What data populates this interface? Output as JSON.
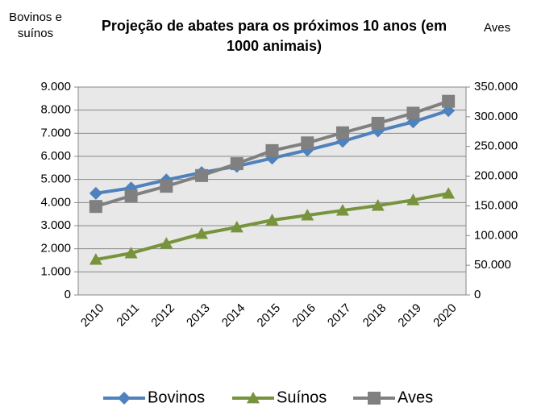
{
  "chart_data": {
    "type": "line",
    "title": "Projeção de abates para os próximos 10 anos (em 1000 animais)",
    "y_label": "Bovinos e suínos",
    "y2_label": "Aves",
    "categories": [
      "2010",
      "2011",
      "2012",
      "2013",
      "2014",
      "2015",
      "2016",
      "2017",
      "2018",
      "2019",
      "2020"
    ],
    "series": [
      {
        "name": "Bovinos",
        "color": "#4f81bd",
        "marker": "diamond",
        "values": [
          4400,
          4630,
          4980,
          5300,
          5570,
          5920,
          6270,
          6650,
          7100,
          7490,
          7980
        ]
      },
      {
        "name": "Suínos",
        "color": "#77933c",
        "marker": "triangle",
        "values": [
          1530,
          1810,
          2230,
          2650,
          2930,
          3240,
          3450,
          3660,
          3870,
          4110,
          4390
        ]
      },
      {
        "name": "Aves",
        "color": "#808080",
        "marker": "square",
        "axis": "y2",
        "values": [
          149000,
          167000,
          183000,
          201000,
          221000,
          243000,
          256000,
          273000,
          289000,
          306000,
          326000
        ]
      }
    ],
    "ylim": [
      0,
      9000
    ],
    "yticks": [
      0,
      {
        "value": 1000,
        "label": "1.000"
      },
      {
        "value": 2000,
        "label": "2.000"
      },
      {
        "value": 3000,
        "label": "3.000"
      },
      {
        "value": 4000,
        "label": "4.000"
      },
      {
        "value": 5000,
        "label": "5.000"
      },
      {
        "value": 6000,
        "label": "6.000"
      },
      {
        "value": 7000,
        "label": "7.000"
      },
      {
        "value": 8000,
        "label": "8.000"
      },
      {
        "value": 9000,
        "label": "9.000"
      }
    ],
    "y2lim": [
      0,
      350000
    ],
    "y2ticks": [
      0,
      {
        "value": 50000,
        "label": "50.000"
      },
      {
        "value": 100000,
        "label": "100.000"
      },
      {
        "value": 150000,
        "label": "150.000"
      },
      {
        "value": 200000,
        "label": "200.000"
      },
      {
        "value": 250000,
        "label": "250.000"
      },
      {
        "value": 300000,
        "label": "300.000"
      },
      {
        "value": 350000,
        "label": "350.000"
      }
    ],
    "grid": true,
    "legend": "bottom"
  }
}
